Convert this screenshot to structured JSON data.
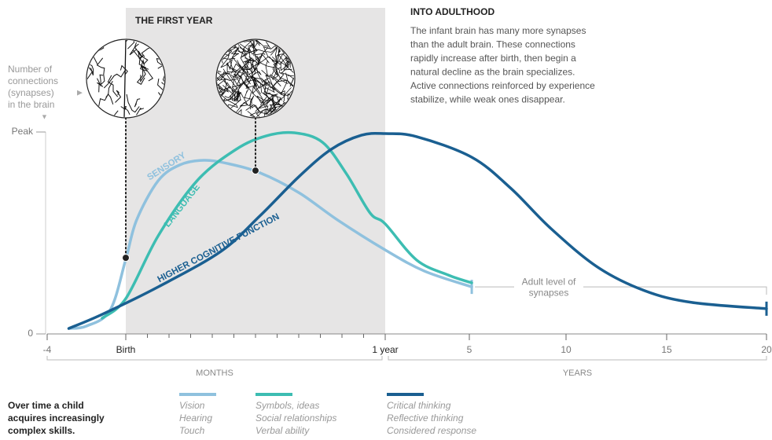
{
  "chart_data": {
    "type": "line",
    "shaded_region": {
      "label": "THE FIRST YEAR",
      "x": [
        0,
        12
      ]
    },
    "y_label": [
      "Number of",
      "connections",
      "(synapses)",
      "in the brain"
    ],
    "annotation": {
      "title": "INTO ADULTHOOD",
      "lines": [
        "The infant brain has many more synapses",
        "than the adult brain. These connections",
        "rapidly increase after birth, then begin a",
        "natural decline as the brain specializes.",
        "Active connections reinforced by experience",
        "stabilize, while weak ones disappear."
      ]
    },
    "xlim": [
      -4,
      240
    ],
    "xticks": [
      -4,
      {
        "value": 0,
        "label": "Birth"
      },
      {
        "value": 12,
        "label": "1 year"
      },
      {
        "value": 60,
        "label": "5"
      },
      {
        "value": 120,
        "label": "10"
      },
      {
        "value": 180,
        "label": "15"
      },
      {
        "value": 240,
        "label": "20"
      }
    ],
    "minor_xticks": [
      1,
      2,
      3,
      4,
      5,
      6,
      7,
      8,
      9,
      10,
      11
    ],
    "x_groups": [
      {
        "label": "MONTHS",
        "range": [
          -4,
          12
        ]
      },
      {
        "label": "YEARS",
        "range": [
          12,
          240
        ]
      }
    ],
    "ylim": [
      0,
      100
    ],
    "yticks": [
      0,
      {
        "value": 100,
        "label": "Peak"
      }
    ],
    "series": [
      {
        "name": "SENSORY",
        "color": "#8fc1de",
        "end_cap": true,
        "skills": [
          "Vision",
          "Hearing",
          "Touch"
        ],
        "x": [
          -2.9,
          -2.0,
          -0.8,
          0,
          0.5,
          1.5,
          2.5,
          3.6,
          4.7,
          6.2,
          8.0,
          9.8,
          12,
          34.4,
          61.5
        ],
        "values": [
          2.7,
          3.9,
          11.7,
          37,
          56.4,
          75.9,
          83.7,
          86,
          84.4,
          79.8,
          70,
          56.4,
          41.6,
          31.1,
          23.3
        ]
      },
      {
        "name": "LANGUAGE",
        "color": "#3dbdb2",
        "end_cap": false,
        "skills": [
          "Symbols, ideas",
          "Social relationships",
          "Verbal ability"
        ],
        "x": [
          -1.2,
          0,
          1.5,
          3.3,
          5.1,
          6.5,
          7.8,
          9.1,
          10.2,
          11.3,
          12,
          29.9,
          47.9,
          61.5
        ],
        "values": [
          7.8,
          17.5,
          48.6,
          75.9,
          91.4,
          98.1,
          99.6,
          94.9,
          79.4,
          59.9,
          54.5,
          36.6,
          29.2,
          25.3
        ]
      },
      {
        "name": "HIGHER COGNITIVE FUNCTION",
        "color": "#1a5f91",
        "end_cap": true,
        "skills": [
          "Critical thinking",
          "Reflective thinking",
          "Considered response"
        ],
        "x": [
          -2.9,
          -1.2,
          1.5,
          4.4,
          6.2,
          8.0,
          9.5,
          10.9,
          12,
          29.9,
          61.5,
          85.9,
          110.2,
          138.8,
          166.9,
          195.1,
          240
        ],
        "values": [
          2.7,
          9.7,
          23.3,
          40.9,
          58.4,
          77.8,
          91.4,
          98.4,
          99.2,
          97.7,
          87.5,
          72,
          52.5,
          33.1,
          21.4,
          15.6,
          12.5
        ]
      }
    ],
    "callouts": [
      {
        "x": 0,
        "y": 37.7
      },
      {
        "x": 6,
        "y": 80.9
      }
    ],
    "adult_level": {
      "label": [
        "Adult level of",
        "synapses"
      ]
    },
    "legend": {
      "title": [
        "Over time a child",
        "acquires increasingly",
        "complex skills."
      ]
    }
  }
}
